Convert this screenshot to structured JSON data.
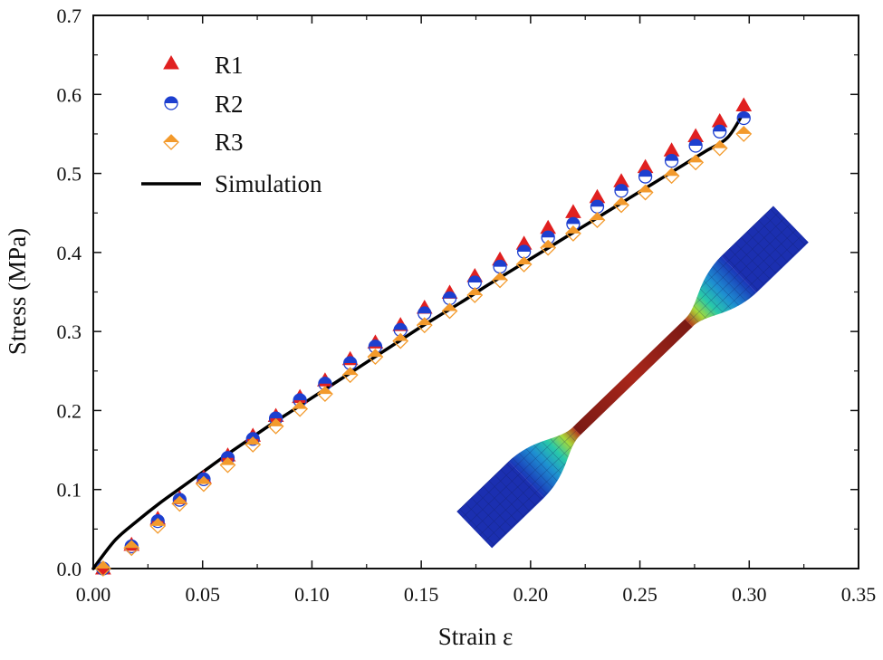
{
  "chart_data": {
    "type": "scatter",
    "title": "",
    "xlabel": "Strain ε",
    "ylabel": "Stress (MPa)",
    "xlim": [
      0,
      0.35
    ],
    "ylim": [
      0,
      0.7
    ],
    "xticks": [
      0.0,
      0.05,
      0.1,
      0.15,
      0.2,
      0.25,
      0.3,
      0.35
    ],
    "xtick_labels": [
      "0.00",
      "0.05",
      "0.10",
      "0.15",
      "0.20",
      "0.25",
      "0.30",
      "0.35"
    ],
    "yticks": [
      0.0,
      0.1,
      0.2,
      0.3,
      0.4,
      0.5,
      0.6,
      0.7
    ],
    "ytick_labels": [
      "0.0",
      "0.1",
      "0.2",
      "0.3",
      "0.4",
      "0.5",
      "0.6",
      "0.7"
    ],
    "grid": false,
    "legend_position": "top-left",
    "x": [
      0.0045,
      0.0175,
      0.0295,
      0.0395,
      0.0505,
      0.0615,
      0.073,
      0.0835,
      0.0945,
      0.106,
      0.1175,
      0.129,
      0.1405,
      0.1515,
      0.163,
      0.1745,
      0.186,
      0.197,
      0.208,
      0.2195,
      0.2305,
      0.2415,
      0.2525,
      0.2645,
      0.2755,
      0.2865,
      0.2975
    ],
    "series": [
      {
        "name": "R1",
        "marker": "triangle",
        "color": "#e02020",
        "values": [
          0.0,
          0.03,
          0.063,
          0.089,
          0.115,
          0.143,
          0.168,
          0.193,
          0.217,
          0.238,
          0.265,
          0.286,
          0.308,
          0.33,
          0.349,
          0.37,
          0.391,
          0.411,
          0.431,
          0.451,
          0.47,
          0.49,
          0.508,
          0.529,
          0.547,
          0.566,
          0.586
        ]
      },
      {
        "name": "R2",
        "marker": "half-filled-circle",
        "color": "#1d3fcf",
        "values": [
          0.0,
          0.028,
          0.06,
          0.087,
          0.113,
          0.14,
          0.164,
          0.19,
          0.213,
          0.234,
          0.26,
          0.281,
          0.302,
          0.323,
          0.342,
          0.362,
          0.382,
          0.401,
          0.419,
          0.436,
          0.458,
          0.478,
          0.496,
          0.516,
          0.535,
          0.553,
          0.57
        ]
      },
      {
        "name": "R3",
        "marker": "half-filled-diamond",
        "color": "#f39a2c",
        "values": [
          0.0,
          0.026,
          0.054,
          0.082,
          0.107,
          0.131,
          0.157,
          0.18,
          0.202,
          0.221,
          0.245,
          0.268,
          0.288,
          0.308,
          0.326,
          0.346,
          0.365,
          0.385,
          0.406,
          0.424,
          0.441,
          0.46,
          0.476,
          0.497,
          0.514,
          0.532,
          0.55
        ]
      },
      {
        "name": "Simulation",
        "type": "line",
        "color": "#000000",
        "x": [
          0.0,
          0.01,
          0.02,
          0.03,
          0.04,
          0.05,
          0.06,
          0.07,
          0.08,
          0.09,
          0.1,
          0.11,
          0.12,
          0.13,
          0.14,
          0.15,
          0.16,
          0.17,
          0.18,
          0.19,
          0.2,
          0.21,
          0.22,
          0.23,
          0.24,
          0.25,
          0.26,
          0.27,
          0.28,
          0.29,
          0.297
        ],
        "values": [
          0.0,
          0.036,
          0.06,
          0.082,
          0.102,
          0.122,
          0.142,
          0.161,
          0.18,
          0.198,
          0.216,
          0.234,
          0.252,
          0.27,
          0.288,
          0.306,
          0.323,
          0.34,
          0.358,
          0.375,
          0.392,
          0.409,
          0.426,
          0.443,
          0.46,
          0.477,
          0.494,
          0.511,
          0.528,
          0.545,
          0.575
        ]
      }
    ],
    "legend": [
      "R1",
      "R2",
      "R3",
      "Simulation"
    ],
    "inset": "dog-bone tensile specimen FE contour (decorative)"
  },
  "colors": {
    "r1": "#e02020",
    "r2": "#1d3fcf",
    "r3": "#f39a2c",
    "simulation": "#000000",
    "axis": "#111111"
  }
}
